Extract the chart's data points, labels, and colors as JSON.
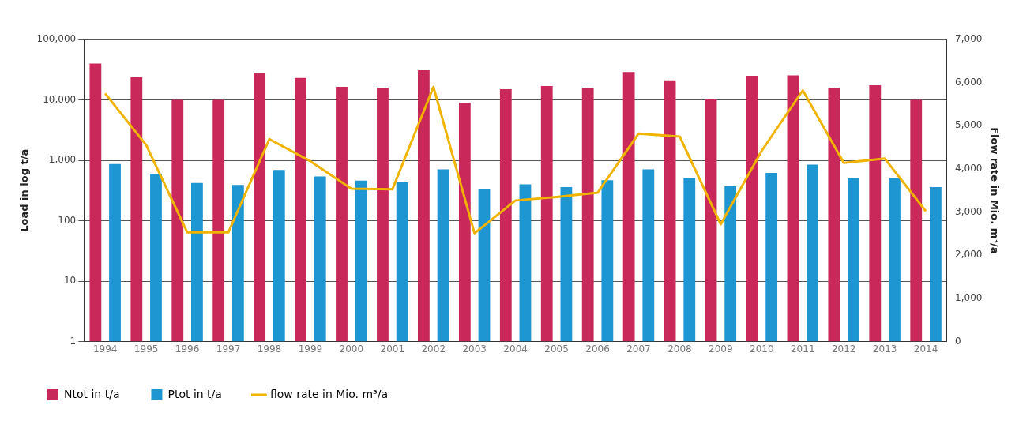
{
  "chart_data": {
    "type": "bar",
    "ylabel": "Load in log t/a",
    "y2label": "Flow rate in Mio. m³/a",
    "categories": [
      "1994",
      "1995",
      "1996",
      "1997",
      "1998",
      "1999",
      "2000",
      "2001",
      "2002",
      "2003",
      "2004",
      "2005",
      "2006",
      "2007",
      "2008",
      "2009",
      "2010",
      "2011",
      "2012",
      "2013",
      "2014"
    ],
    "series": [
      {
        "name": "Ntot in t/a",
        "color": "#c8285a",
        "values": [
          40000,
          24000,
          10000,
          10000,
          28000,
          23000,
          16500,
          16000,
          31000,
          9000,
          15000,
          17000,
          16000,
          29000,
          21000,
          10300,
          25000,
          25500,
          16000,
          17500,
          10000
        ]
      },
      {
        "name": "Ptot in t/a",
        "color": "#1e96d2",
        "values": [
          870,
          600,
          420,
          390,
          690,
          540,
          460,
          430,
          710,
          330,
          400,
          360,
          470,
          710,
          510,
          370,
          620,
          850,
          510,
          510,
          360
        ]
      },
      {
        "name": "flow rate in Mio. m³/a",
        "type": "line",
        "axis": "y2",
        "color": "#f0b400",
        "values": [
          5750,
          4550,
          2530,
          2530,
          4690,
          4180,
          3540,
          3530,
          5900,
          2510,
          3270,
          3350,
          3450,
          4820,
          4750,
          2720,
          4420,
          5820,
          4140,
          4240,
          3020
        ]
      }
    ],
    "log": "y",
    "ylim": [
      1,
      100000
    ],
    "yticks": [
      1,
      10,
      100,
      {
        "value": 1000,
        "label": "1,000"
      },
      {
        "value": 10000,
        "label": "10,000"
      },
      {
        "value": 100000,
        "label": "100,000"
      }
    ],
    "y2lim": [
      0,
      7000
    ],
    "y2ticks": [
      0,
      {
        "value": 1000,
        "label": "1,000"
      },
      {
        "value": 2000,
        "label": "2,000"
      },
      {
        "value": 3000,
        "label": "3,000"
      },
      {
        "value": 4000,
        "label": "4,000"
      },
      {
        "value": 5000,
        "label": "5,000"
      },
      {
        "value": 6000,
        "label": "6,000"
      },
      {
        "value": 7000,
        "label": "7,000"
      }
    ],
    "grid": "y",
    "legend": "bottom left",
    "marker": "none",
    "line_style": "solid"
  }
}
